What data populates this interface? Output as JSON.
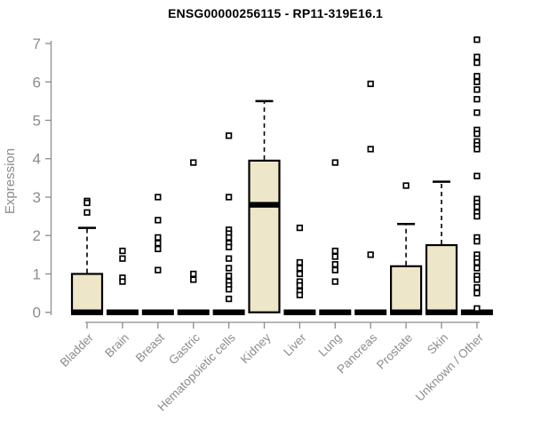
{
  "chart_data": {
    "type": "boxplot",
    "title": "ENSG00000256115 - RP11-319E16.1",
    "ylabel": "Expression",
    "xlabel": "",
    "ylim": [
      0,
      7
    ],
    "yticks": [
      0,
      1,
      2,
      3,
      4,
      5,
      6,
      7
    ],
    "grid": false,
    "legend": "none",
    "axis_color": "#8c8c8c",
    "box_fill": "#ede6c8",
    "box_border": "#000000",
    "outlier_marker": "open-square",
    "categories": [
      "Bladder",
      "Brain",
      "Breast",
      "Gastric",
      "Hematopoietic cells",
      "Kidney",
      "Liver",
      "Lung",
      "Pancreas",
      "Prostate",
      "Skin",
      "Unknown / Other"
    ],
    "boxes": [
      {
        "category": "Bladder",
        "q1": 0,
        "median": 0,
        "q3": 1.0,
        "whisker_low": 0,
        "whisker_high": 2.2,
        "outliers": [
          2.9,
          2.85,
          2.6
        ]
      },
      {
        "category": "Brain",
        "q1": 0,
        "median": 0,
        "q3": 0,
        "whisker_low": 0,
        "whisker_high": 0,
        "outliers": [
          1.6,
          1.4,
          0.9,
          0.8
        ]
      },
      {
        "category": "Breast",
        "q1": 0,
        "median": 0,
        "q3": 0,
        "whisker_low": 0,
        "whisker_high": 0,
        "outliers": [
          3.0,
          2.4,
          1.95,
          1.8,
          1.65,
          1.1
        ]
      },
      {
        "category": "Gastric",
        "q1": 0,
        "median": 0,
        "q3": 0,
        "whisker_low": 0,
        "whisker_high": 0,
        "outliers": [
          3.9,
          1.0,
          0.85
        ]
      },
      {
        "category": "Hematopoietic cells",
        "q1": 0,
        "median": 0,
        "q3": 0,
        "whisker_low": 0,
        "whisker_high": 0,
        "outliers": [
          4.6,
          3.0,
          2.15,
          2.05,
          1.95,
          1.8,
          1.7,
          1.4,
          1.15,
          0.95,
          0.8,
          0.7,
          0.6,
          0.35
        ]
      },
      {
        "category": "Kidney",
        "q1": 0,
        "median": 2.8,
        "q3": 3.95,
        "whisker_low": 0,
        "whisker_high": 5.5,
        "outliers": []
      },
      {
        "category": "Liver",
        "q1": 0,
        "median": 0,
        "q3": 0,
        "whisker_low": 0,
        "whisker_high": 0,
        "outliers": [
          2.2,
          1.3,
          1.15,
          1.0,
          0.8,
          0.7,
          0.55,
          0.45
        ]
      },
      {
        "category": "Lung",
        "q1": 0,
        "median": 0,
        "q3": 0,
        "whisker_low": 0,
        "whisker_high": 0,
        "outliers": [
          3.9,
          1.6,
          1.45,
          1.25,
          1.1,
          0.8
        ]
      },
      {
        "category": "Pancreas",
        "q1": 0,
        "median": 0,
        "q3": 0,
        "whisker_low": 0,
        "whisker_high": 0,
        "outliers": [
          5.95,
          4.25,
          1.5
        ]
      },
      {
        "category": "Prostate",
        "q1": 0,
        "median": 0,
        "q3": 1.2,
        "whisker_low": 0,
        "whisker_high": 2.3,
        "outliers": [
          3.3
        ]
      },
      {
        "category": "Skin",
        "q1": 0,
        "median": 0,
        "q3": 1.75,
        "whisker_low": 0,
        "whisker_high": 3.4,
        "outliers": []
      },
      {
        "category": "Unknown / Other",
        "q1": 0,
        "median": 0,
        "q3": 0,
        "whisker_low": 0,
        "whisker_high": 0,
        "outliers": [
          7.1,
          6.65,
          6.5,
          6.15,
          6.0,
          5.8,
          5.55,
          5.2,
          4.75,
          4.65,
          4.45,
          4.35,
          4.25,
          3.55,
          2.95,
          2.85,
          2.75,
          2.6,
          2.5,
          1.95,
          1.85,
          1.5,
          1.4,
          1.3,
          1.15,
          0.95,
          0.85,
          0.65,
          0.5,
          0.1
        ]
      }
    ]
  }
}
